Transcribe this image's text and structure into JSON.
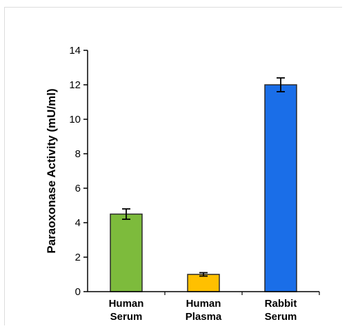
{
  "chart_data": {
    "type": "bar",
    "title": "",
    "xlabel": "",
    "ylabel": "Paraoxonase Activity (mU/ml)",
    "ylim": [
      0,
      14
    ],
    "yticks": [
      0,
      2,
      4,
      6,
      8,
      10,
      12,
      14
    ],
    "grid": false,
    "categories": [
      [
        "Human",
        "Serum"
      ],
      [
        "Human",
        "Plasma"
      ],
      [
        "Rabbit",
        "Serum"
      ]
    ],
    "values": [
      4.5,
      1.0,
      12.0
    ],
    "errors": [
      0.3,
      0.1,
      0.4
    ],
    "colors": [
      "#7dbb3c",
      "#ffc000",
      "#1a6ee8"
    ],
    "edge_color": "#2a2a2a"
  }
}
